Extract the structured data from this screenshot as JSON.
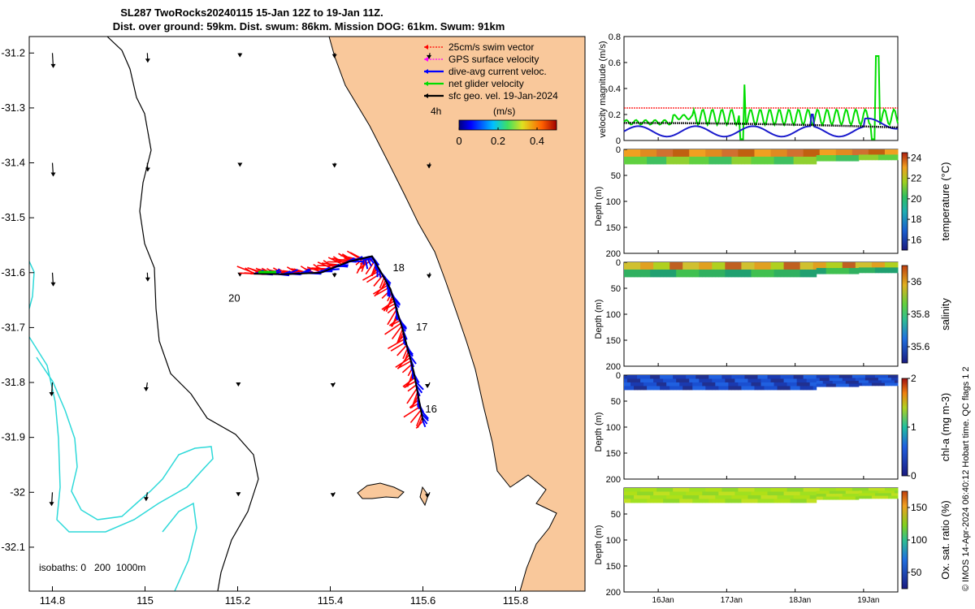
{
  "title": {
    "line1": "SL287 TwoRocks20240115 15-Jan 12Z to 19-Jan 11Z.",
    "line2": "Dist. over ground: 59km. Dist. swum: 86km. Mission DOG: 61km. Swum: 91km"
  },
  "colors": {
    "land": "#f9c89b",
    "isobath_shallow": "#00e5e5",
    "isobath_coast": "#000000",
    "swim": "#ff0000",
    "gps": "#ff00ff",
    "current": "#0000ff",
    "net": "#00dd00",
    "geo": "#000000"
  },
  "map": {
    "lon_ticks": [
      "114.8",
      "115",
      "115.2",
      "115.4",
      "115.6",
      "115.8"
    ],
    "lat_ticks": [
      "-31.2",
      "-31.3",
      "-31.4",
      "-31.5",
      "-31.6",
      "-31.7",
      "-31.8",
      "-31.9",
      "-32",
      "-32.1"
    ],
    "xlim": [
      114.75,
      115.95
    ],
    "ylim": [
      -32.18,
      -31.17
    ],
    "legend": [
      {
        "label": "25cm/s swim vector",
        "color": "#ff0000",
        "style": "dotted"
      },
      {
        "label": "GPS surface velocity",
        "color": "#ff00ff",
        "style": "dotted"
      },
      {
        "label": "dive-avg current veloc.",
        "color": "#0000ff",
        "style": "solid"
      },
      {
        "label": "net glider velocity",
        "color": "#00dd00",
        "style": "solid"
      },
      {
        "label": "sfc geo. vel. 19-Jan-2024",
        "color": "#000000",
        "style": "solid"
      }
    ],
    "hours_label": "4h",
    "colorbar": {
      "unit": "(m/s)",
      "ticks": [
        "0",
        "0.2",
        "0.4"
      ],
      "range": [
        0,
        0.5
      ]
    },
    "isobath_note": "isobaths: 0   200  1000m",
    "day_labels": [
      {
        "text": "16",
        "lon": 115.605,
        "lat": -31.855
      },
      {
        "text": "17",
        "lon": 115.585,
        "lat": -31.705
      },
      {
        "text": "18",
        "lon": 115.535,
        "lat": -31.597
      },
      {
        "text": "20",
        "lon": 115.18,
        "lat": -31.653
      }
    ],
    "track": [
      [
        115.6,
        -31.87
      ],
      [
        115.58,
        -31.78
      ],
      [
        115.555,
        -31.7
      ],
      [
        115.53,
        -31.63
      ],
      [
        115.49,
        -31.57
      ],
      [
        115.44,
        -31.58
      ],
      [
        115.38,
        -31.6
      ],
      [
        115.3,
        -31.603
      ],
      [
        115.235,
        -31.602
      ]
    ]
  },
  "velocity_panel": {
    "ylabel": "velocity magnitude (m/s)",
    "yticks": [
      "0",
      "0.2",
      "0.4",
      "0.6",
      "0.8"
    ],
    "ylim": [
      0,
      0.8
    ],
    "swim_level": 0.25,
    "net_spikes": [
      {
        "day": 17.25,
        "value": 0.43
      },
      {
        "day": 19.2,
        "value": 0.65
      }
    ],
    "current_spike": {
      "day": 18.25,
      "value": 0.2
    }
  },
  "profiles": [
    {
      "ylabel": "Depth (m)",
      "cbar_label": "temperature (°C)",
      "cbar_ticks": [
        "24",
        "22",
        "20",
        "18",
        "16"
      ],
      "yticks": [
        "0",
        "50",
        "100",
        "150",
        "200"
      ],
      "range": [
        15,
        24.5
      ],
      "palette": "temp"
    },
    {
      "ylabel": "Depth (m)",
      "cbar_label": "salinity",
      "cbar_ticks": [
        "36",
        "35.8",
        "35.6"
      ],
      "yticks": [
        "0",
        "50",
        "100",
        "150",
        "200"
      ],
      "range": [
        35.5,
        36.1
      ],
      "palette": "sal"
    },
    {
      "ylabel": "Depth (m)",
      "cbar_label": "chl-a (mg m-3)",
      "cbar_ticks": [
        "2",
        "1",
        "0"
      ],
      "yticks": [
        "0",
        "50",
        "100",
        "150",
        "200"
      ],
      "range": [
        0,
        2
      ],
      "palette": "chl"
    },
    {
      "ylabel": "Depth (m)",
      "cbar_label": "Ox. sat. ratio (%)",
      "cbar_ticks": [
        "150",
        "100",
        "50"
      ],
      "yticks": [
        "50",
        "100",
        "150",
        "200"
      ],
      "range": [
        25,
        175
      ],
      "palette": "oxy"
    }
  ],
  "time_axis": {
    "ticks": [
      "16Jan",
      "17Jan",
      "18Jan",
      "19Jan"
    ]
  },
  "footer": "© IMOS 14-Apr-2024 06:40:12 Hobart time. QC flags 1  2",
  "chart_data": [
    {
      "type": "scatter",
      "title": "SL287 TwoRocks20240115 15-Jan 12Z to 19-Jan 11Z.",
      "subtitle": "Dist. over ground: 59km. Dist. swum: 86km. Mission DOG: 61km. Swum: 91km",
      "x": [
        115.6,
        115.58,
        115.555,
        115.53,
        115.49,
        115.44,
        115.38,
        115.3,
        115.235
      ],
      "y": [
        -31.87,
        -31.78,
        -31.7,
        -31.63,
        -31.57,
        -31.58,
        -31.6,
        -31.603,
        -31.602
      ],
      "xlim": [
        114.75,
        115.95
      ],
      "ylim": [
        -32.18,
        -31.17
      ],
      "legend": [
        "25cm/s swim vector",
        "GPS surface velocity",
        "dive-avg current veloc.",
        "net glider velocity",
        "sfc geo. vel. 19-Jan-2024"
      ]
    },
    {
      "type": "line",
      "ylabel": "velocity magnitude (m/s)",
      "categories": [
        "16Jan",
        "17Jan",
        "18Jan",
        "19Jan"
      ],
      "ylim": [
        0,
        0.8
      ],
      "series": [
        {
          "name": "25cm/s swim vector",
          "values": [
            0.25,
            0.25,
            0.25,
            0.25
          ]
        },
        {
          "name": "net glider velocity",
          "values": [
            0.15,
            0.2,
            0.15,
            0.2
          ]
        },
        {
          "name": "dive-avg current veloc.",
          "values": [
            0.05,
            0.1,
            0.1,
            0.12
          ]
        },
        {
          "name": "sfc geo. vel. 19-Jan-2024",
          "values": [
            0.13,
            0.13,
            0.12,
            0.1
          ]
        }
      ]
    },
    {
      "type": "heatmap",
      "ylabel": "Depth (m)",
      "zlabel": "temperature (°C)",
      "ylim": [
        200,
        0
      ],
      "zlim": [
        15,
        24.5
      ]
    },
    {
      "type": "heatmap",
      "ylabel": "Depth (m)",
      "zlabel": "salinity",
      "ylim": [
        200,
        0
      ],
      "zlim": [
        35.5,
        36.1
      ]
    },
    {
      "type": "heatmap",
      "ylabel": "Depth (m)",
      "zlabel": "chl-a (mg m-3)",
      "ylim": [
        200,
        0
      ],
      "zlim": [
        0,
        2
      ]
    },
    {
      "type": "heatmap",
      "ylabel": "Depth (m)",
      "zlabel": "Ox. sat. ratio (%)",
      "ylim": [
        200,
        0
      ],
      "zlim": [
        25,
        175
      ]
    }
  ]
}
